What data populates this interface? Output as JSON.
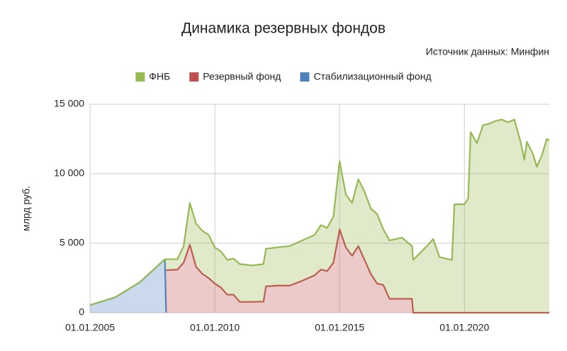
{
  "chart_data": {
    "type": "area",
    "stacked": true,
    "grid": true,
    "title": "Динамика резервных фондов",
    "source": "Источник данных: Минфин",
    "ylabel": "млрд руб.",
    "legend": "top",
    "x": [
      2005.0,
      2006.0,
      2007.0,
      2008.0,
      2008.05,
      2008.5,
      2008.75,
      2009.0,
      2009.25,
      2009.5,
      2009.75,
      2010.0,
      2010.25,
      2010.5,
      2010.75,
      2011.0,
      2011.5,
      2011.95,
      2012.05,
      2012.5,
      2013.0,
      2013.5,
      2014.0,
      2014.25,
      2014.5,
      2014.75,
      2015.0,
      2015.25,
      2015.5,
      2015.75,
      2016.0,
      2016.25,
      2016.5,
      2016.75,
      2017.0,
      2017.5,
      2017.9,
      2017.95,
      2018.5,
      2018.75,
      2019.0,
      2019.5,
      2019.6,
      2020.0,
      2020.15,
      2020.25,
      2020.5,
      2020.75,
      2021.0,
      2021.25,
      2021.5,
      2021.75,
      2022.0,
      2022.25,
      2022.4,
      2022.5,
      2022.75,
      2022.9,
      2023.1,
      2023.3,
      2023.4
    ],
    "series": [
      {
        "name": "ФНБ",
        "color": "#97b954",
        "values": [
          0,
          0,
          0,
          0,
          790,
          750,
          1200,
          3000,
          3100,
          3100,
          3100,
          2600,
          2600,
          2500,
          2600,
          2720,
          2620,
          2700,
          2700,
          2750,
          2850,
          2900,
          2900,
          3200,
          3100,
          3300,
          4900,
          3800,
          3800,
          4800,
          4900,
          4700,
          5000,
          4000,
          4200,
          4400,
          3800,
          3800,
          4800,
          5300,
          4000,
          3800,
          7800,
          7800,
          8200,
          13000,
          12200,
          13500,
          13600,
          13800,
          13900,
          13700,
          13900,
          12300,
          11000,
          12300,
          11400,
          10500,
          11300,
          12500,
          12400
        ]
      },
      {
        "name": "Резервный фонд",
        "color": "#c0504d",
        "values": [
          null,
          null,
          null,
          null,
          3060,
          3100,
          3600,
          4900,
          3300,
          2800,
          2500,
          2100,
          1800,
          1300,
          1300,
          780,
          780,
          800,
          1900,
          1950,
          1950,
          2300,
          2700,
          3100,
          3000,
          3600,
          6000,
          4700,
          4100,
          4800,
          3800,
          2800,
          2100,
          2000,
          1000,
          1000,
          1000,
          0,
          0,
          0,
          0,
          0,
          0,
          0,
          0,
          0,
          0,
          0,
          0,
          0,
          0,
          0,
          0,
          0,
          0,
          0,
          0,
          0,
          0,
          0,
          0
        ]
      },
      {
        "name": "Стабилизационный фонд",
        "color": "#4f81bd",
        "values": [
          550,
          1100,
          2200,
          3850,
          0,
          null,
          null,
          null,
          null,
          null,
          null,
          null,
          null,
          null,
          null,
          null,
          null,
          null,
          null,
          null,
          null,
          null,
          null,
          null,
          null,
          null,
          null,
          null,
          null,
          null,
          null,
          null,
          null,
          null,
          null,
          null,
          null,
          null,
          null,
          null,
          null,
          null,
          null,
          null,
          null,
          null,
          null,
          null,
          null,
          null,
          null,
          null,
          null,
          null,
          null,
          null,
          null,
          null,
          null,
          null,
          null
        ]
      }
    ],
    "xlim": [
      2005,
      2023.4
    ],
    "xticks": [
      {
        "value": 2005,
        "label": "01.01.2005"
      },
      {
        "value": 2010,
        "label": "01.01.2010"
      },
      {
        "value": 2015,
        "label": "01.01.2015"
      },
      {
        "value": 2020,
        "label": "01.01.2020"
      }
    ],
    "ylim": [
      0,
      15000
    ],
    "yticks": [
      0,
      {
        "value": 5000,
        "label": "5 000"
      },
      {
        "value": 10000,
        "label": "10 000"
      },
      {
        "value": 15000,
        "label": "15 000"
      }
    ]
  }
}
